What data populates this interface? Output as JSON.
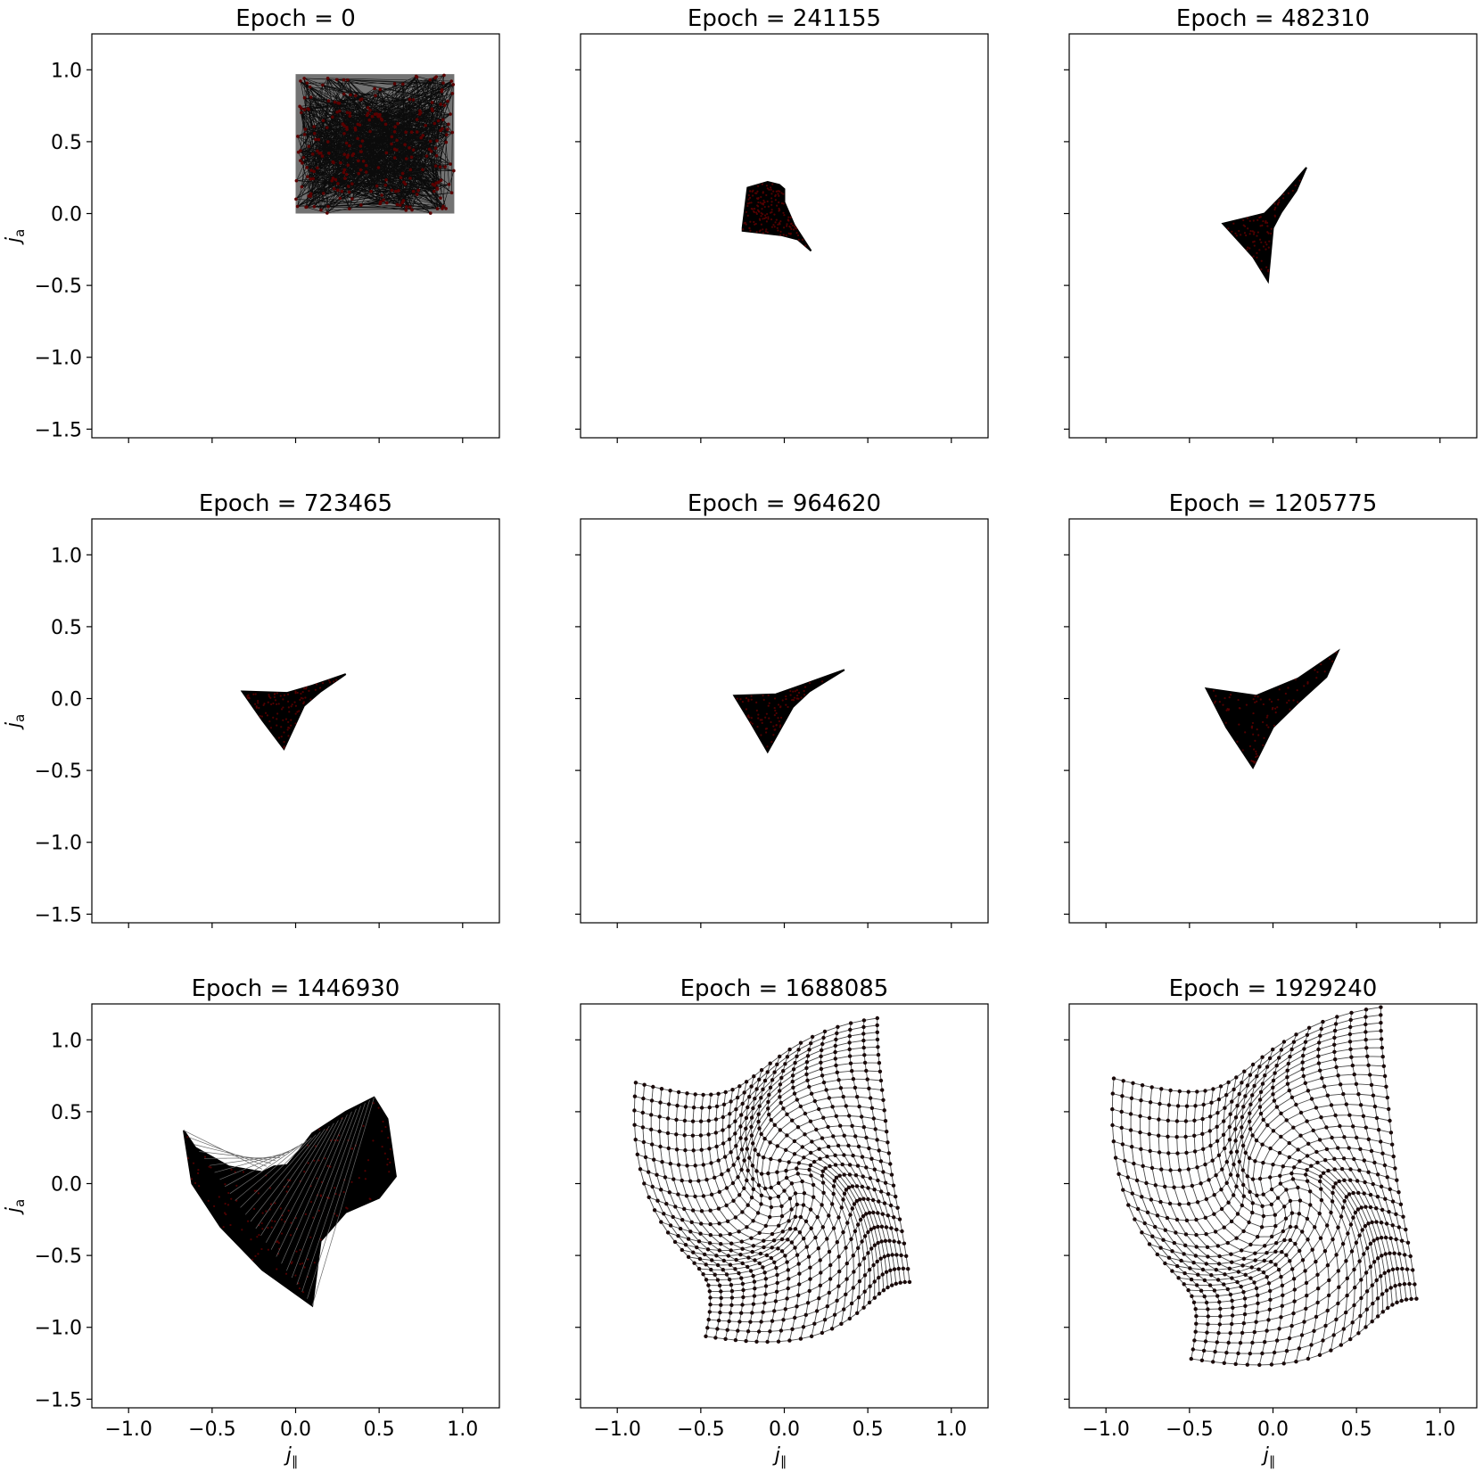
{
  "chart_data": [
    {
      "type": "scatter",
      "title": "Epoch = 0",
      "ylabel": "j_a",
      "xlabel": "",
      "xlim": [
        -1.22,
        1.22
      ],
      "ylim": [
        -1.56,
        1.25
      ],
      "shape": {
        "kind": "box",
        "x": [
          0.0,
          0.95
        ],
        "y": [
          0.0,
          0.97
        ]
      }
    },
    {
      "type": "scatter",
      "title": "Epoch = 241155",
      "ylabel": "",
      "xlabel": "",
      "xlim": [
        -1.22,
        1.22
      ],
      "ylim": [
        -1.56,
        1.25
      ],
      "shape": {
        "kind": "polygon",
        "points": [
          [
            -0.25,
            -0.1
          ],
          [
            -0.22,
            0.18
          ],
          [
            -0.1,
            0.22
          ],
          [
            -0.03,
            0.2
          ],
          [
            0.0,
            0.17
          ],
          [
            0.0,
            0.08
          ],
          [
            0.06,
            -0.08
          ],
          [
            0.16,
            -0.26
          ],
          [
            0.08,
            -0.18
          ],
          [
            -0.02,
            -0.15
          ],
          [
            -0.25,
            -0.12
          ]
        ]
      }
    },
    {
      "type": "scatter",
      "title": "Epoch = 482310",
      "ylabel": "",
      "xlabel": "",
      "xlim": [
        -1.22,
        1.22
      ],
      "ylim": [
        -1.56,
        1.25
      ],
      "shape": {
        "kind": "polygon",
        "points": [
          [
            -0.3,
            -0.07
          ],
          [
            -0.05,
            0.0
          ],
          [
            0.05,
            0.12
          ],
          [
            0.2,
            0.32
          ],
          [
            0.14,
            0.16
          ],
          [
            0.05,
            0.01
          ],
          [
            0.0,
            -0.1
          ],
          [
            -0.03,
            -0.47
          ],
          [
            -0.12,
            -0.3
          ]
        ]
      }
    },
    {
      "type": "scatter",
      "title": "Epoch = 723465",
      "ylabel": "j_a",
      "xlabel": "",
      "xlim": [
        -1.22,
        1.22
      ],
      "ylim": [
        -1.56,
        1.25
      ],
      "shape": {
        "kind": "polygon",
        "points": [
          [
            -0.32,
            0.05
          ],
          [
            -0.05,
            0.04
          ],
          [
            0.1,
            0.09
          ],
          [
            0.3,
            0.17
          ],
          [
            0.15,
            0.05
          ],
          [
            0.05,
            -0.05
          ],
          [
            -0.07,
            -0.35
          ],
          [
            -0.2,
            -0.15
          ]
        ]
      }
    },
    {
      "type": "scatter",
      "title": "Epoch = 964620",
      "ylabel": "",
      "xlabel": "",
      "xlim": [
        -1.22,
        1.22
      ],
      "ylim": [
        -1.56,
        1.25
      ],
      "shape": {
        "kind": "polygon",
        "points": [
          [
            -0.3,
            0.02
          ],
          [
            -0.05,
            0.03
          ],
          [
            0.12,
            0.1
          ],
          [
            0.36,
            0.2
          ],
          [
            0.15,
            0.05
          ],
          [
            0.05,
            -0.06
          ],
          [
            -0.1,
            -0.37
          ],
          [
            -0.2,
            -0.17
          ]
        ]
      }
    },
    {
      "type": "scatter",
      "title": "Epoch = 1205775",
      "ylabel": "",
      "xlabel": "",
      "xlim": [
        -1.22,
        1.22
      ],
      "ylim": [
        -1.56,
        1.25
      ],
      "shape": {
        "kind": "polygon",
        "points": [
          [
            -0.4,
            0.07
          ],
          [
            -0.1,
            0.02
          ],
          [
            0.15,
            0.14
          ],
          [
            0.39,
            0.33
          ],
          [
            0.32,
            0.15
          ],
          [
            0.15,
            -0.03
          ],
          [
            0.0,
            -0.2
          ],
          [
            -0.12,
            -0.48
          ],
          [
            -0.28,
            -0.2
          ]
        ]
      }
    },
    {
      "type": "scatter",
      "title": "Epoch = 1446930",
      "ylabel": "j_a",
      "xlabel": "j_∥",
      "xlim": [
        -1.22,
        1.22
      ],
      "ylim": [
        -1.56,
        1.25
      ],
      "shape": {
        "kind": "polygon",
        "points": [
          [
            -0.67,
            0.37
          ],
          [
            -0.6,
            0.25
          ],
          [
            -0.4,
            0.12
          ],
          [
            -0.2,
            0.08
          ],
          [
            -0.13,
            0.12
          ],
          [
            -0.05,
            0.13
          ],
          [
            0.0,
            0.2
          ],
          [
            0.1,
            0.35
          ],
          [
            0.3,
            0.5
          ],
          [
            0.47,
            0.6
          ],
          [
            0.55,
            0.45
          ],
          [
            0.6,
            0.05
          ],
          [
            0.5,
            -0.1
          ],
          [
            0.3,
            -0.2
          ],
          [
            0.15,
            -0.4
          ],
          [
            0.1,
            -0.85
          ],
          [
            -0.2,
            -0.6
          ],
          [
            -0.45,
            -0.3
          ],
          [
            -0.62,
            0.0
          ]
        ]
      }
    },
    {
      "type": "scatter",
      "title": "Epoch = 1688085",
      "ylabel": "",
      "xlabel": "j_∥",
      "xlim": [
        -1.22,
        1.22
      ],
      "ylim": [
        -1.56,
        1.25
      ],
      "shape": {
        "kind": "grid",
        "cx": 0.0,
        "cy": -0.05,
        "radius": 0.95,
        "y_scale": 1.35
      }
    },
    {
      "type": "scatter",
      "title": "Epoch = 1929240",
      "ylabel": "",
      "xlabel": "j_∥",
      "xlim": [
        -1.22,
        1.22
      ],
      "ylim": [
        -1.56,
        1.25
      ],
      "shape": {
        "kind": "grid",
        "cx": 0.03,
        "cy": -0.1,
        "radius": 1.05,
        "y_scale": 1.35
      }
    }
  ],
  "shared_axes": {
    "x_ticks": [
      -1.0,
      -0.5,
      0.0,
      0.5,
      1.0
    ],
    "x_tick_labels": [
      "−1.0",
      "−0.5",
      "0.0",
      "0.5",
      "1.0"
    ],
    "y_ticks": [
      1.0,
      0.5,
      0.0,
      -0.5,
      -1.0,
      -1.5
    ],
    "y_tick_labels": [
      "1.0",
      "0.5",
      "0.0",
      "−0.5",
      "−1.0",
      "−1.5"
    ]
  },
  "colors": {
    "line": "#000000",
    "point": "#5a0000",
    "axes": "#000000"
  }
}
